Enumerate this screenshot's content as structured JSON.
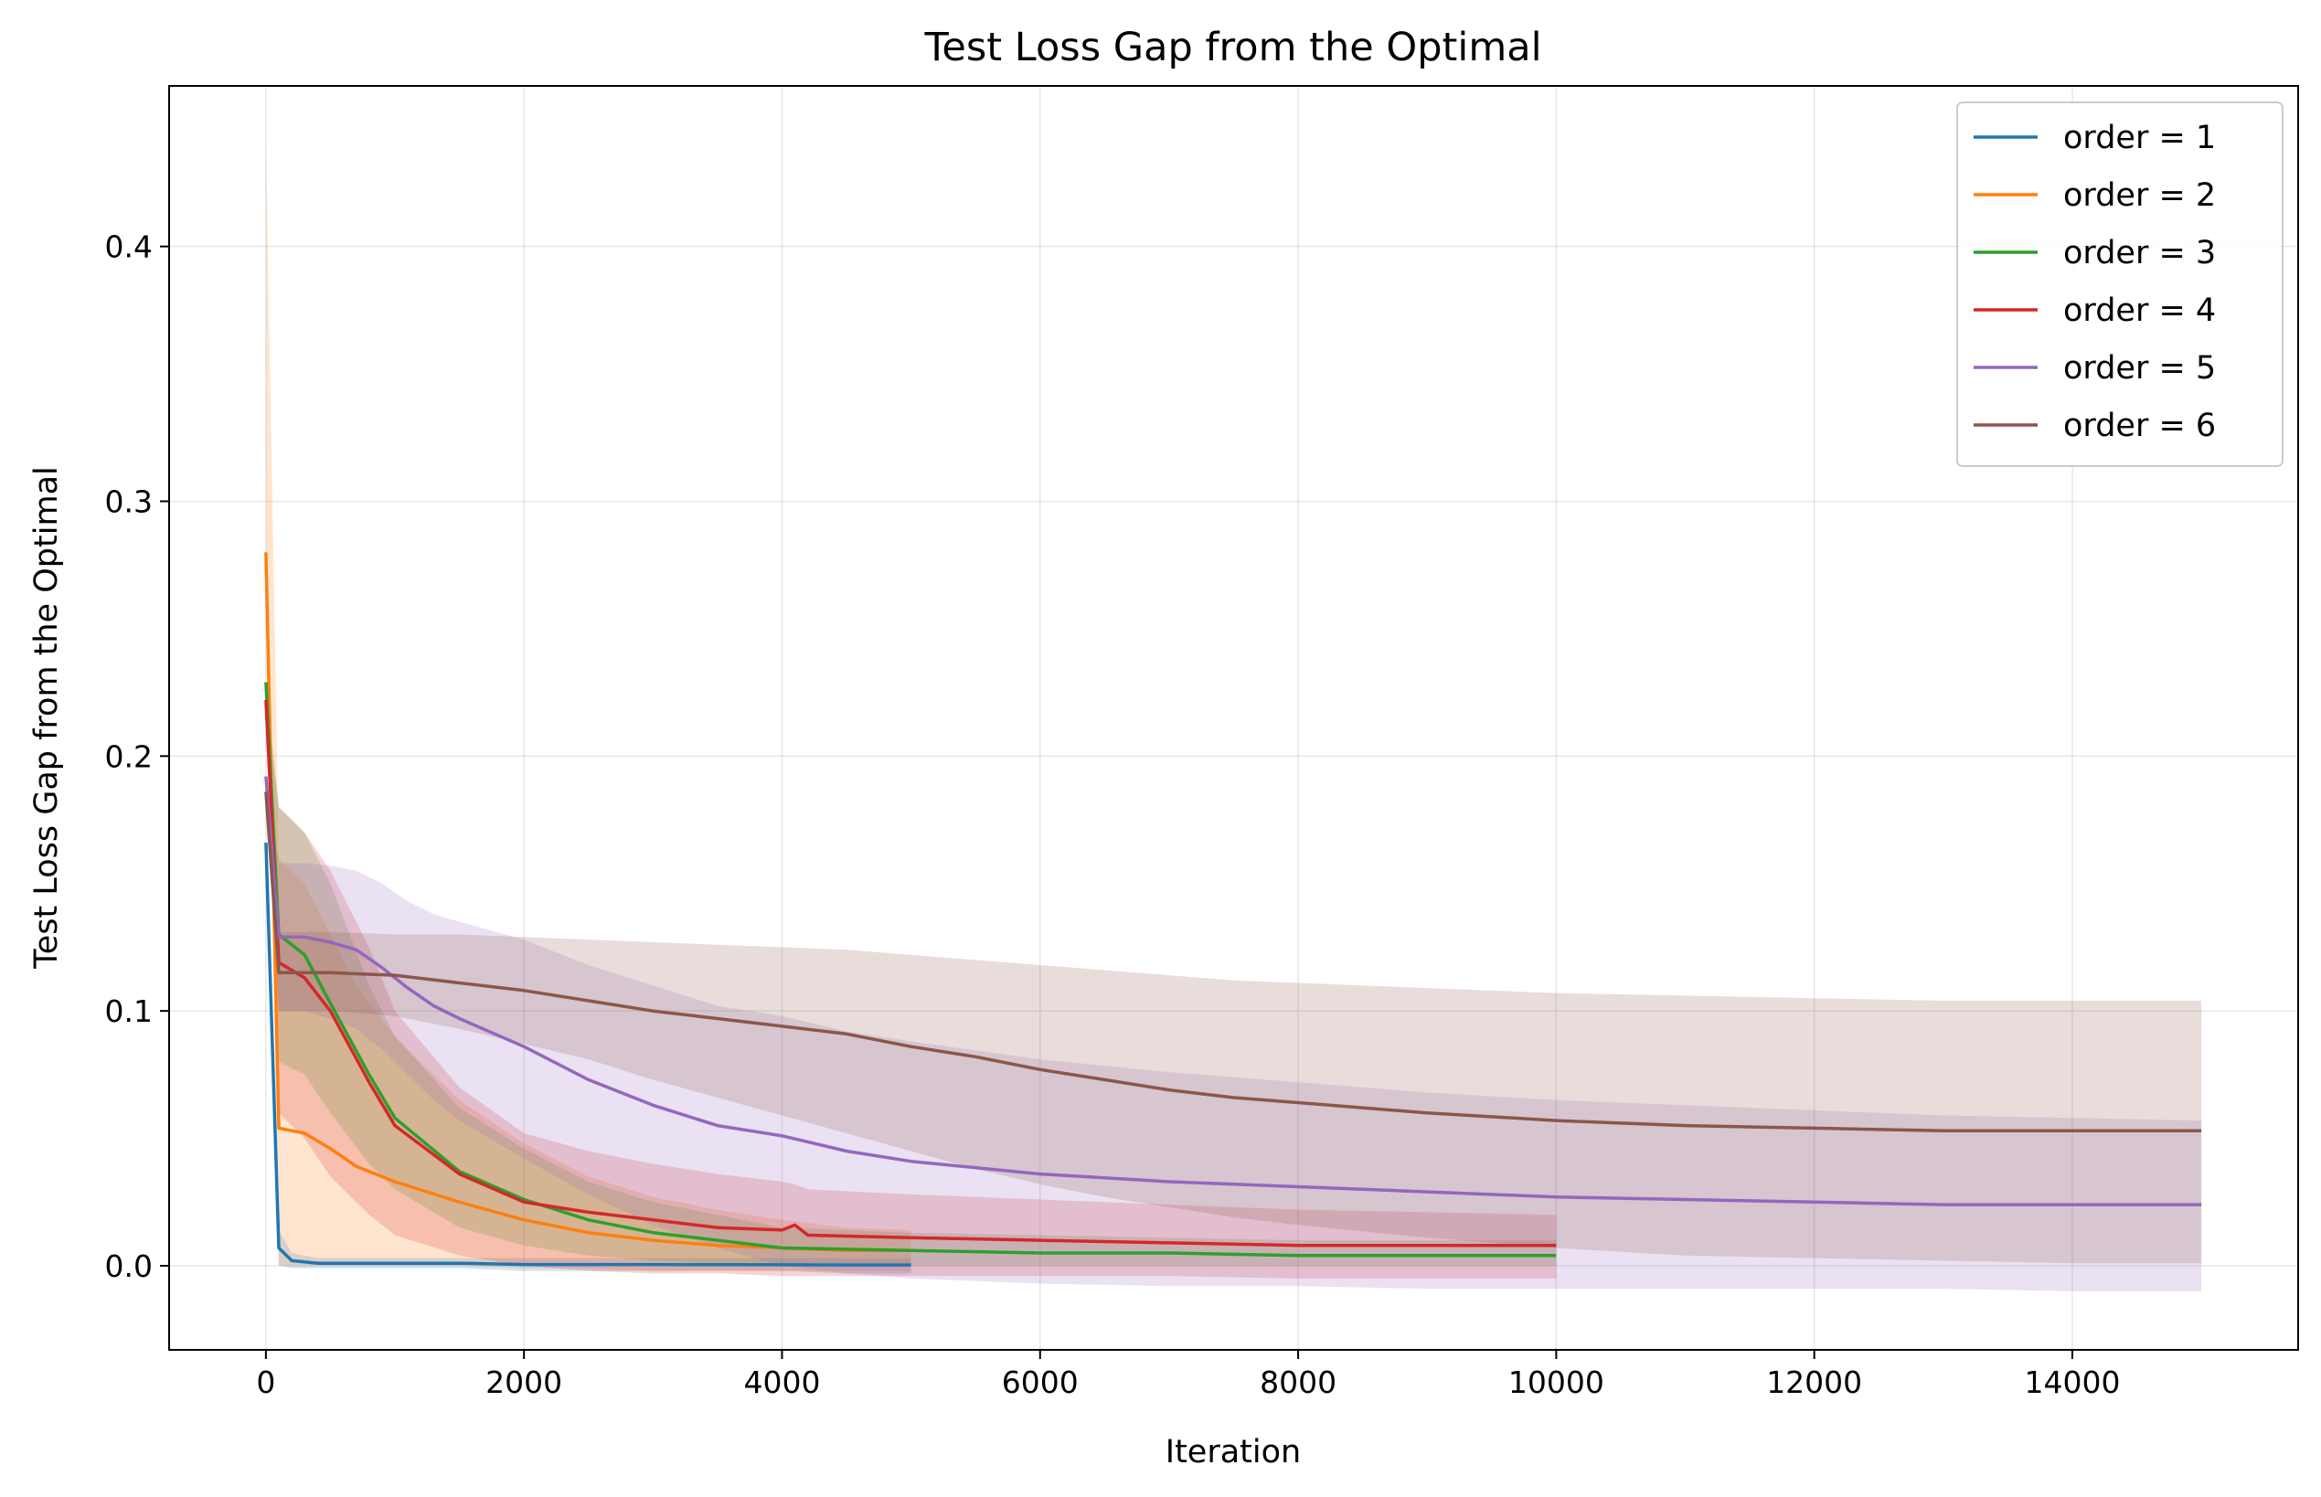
{
  "chart_data": {
    "type": "line",
    "title": "Test Loss Gap from the Optimal",
    "xlabel": "Iteration",
    "ylabel": "Test Loss Gap from the Optimal",
    "xlim": [
      -750,
      15750
    ],
    "ylim": [
      -0.033,
      0.463
    ],
    "xticks": [
      0,
      2000,
      4000,
      6000,
      8000,
      10000,
      12000,
      14000
    ],
    "yticks": [
      0.0,
      0.1,
      0.2,
      0.3,
      0.4
    ],
    "ytick_labels": [
      "0.0",
      "0.1",
      "0.2",
      "0.3",
      "0.4"
    ],
    "grid": true,
    "legend_position": "top-right",
    "series": [
      {
        "name": "order = 1",
        "color": "#1f77b4",
        "x": [
          0,
          100,
          200,
          400,
          700,
          1000,
          1500,
          2000,
          3000,
          4000,
          4500,
          5000
        ],
        "y": [
          0.166,
          0.007,
          0.002,
          0.001,
          0.001,
          0.001,
          0.001,
          0.0005,
          0.0005,
          0.0004,
          0.0003,
          0.0003
        ],
        "lower": [
          0.166,
          0.0,
          -0.001,
          -0.001,
          -0.001,
          -0.001,
          -0.001,
          -0.002,
          -0.002,
          -0.002,
          -0.003,
          -0.003
        ],
        "upper": [
          0.166,
          0.014,
          0.005,
          0.003,
          0.003,
          0.003,
          0.003,
          0.003,
          0.003,
          0.003,
          0.003,
          0.003
        ]
      },
      {
        "name": "order = 2",
        "color": "#ff7f0e",
        "x": [
          0,
          100,
          300,
          500,
          700,
          1000,
          1500,
          2000,
          2500,
          3000,
          3500,
          4000,
          4500,
          5000
        ],
        "y": [
          0.28,
          0.054,
          0.052,
          0.046,
          0.039,
          0.033,
          0.025,
          0.018,
          0.013,
          0.01,
          0.008,
          0.007,
          0.006,
          0.006
        ],
        "lower": [
          0.28,
          0.0,
          0.0,
          0.0,
          0.0,
          0.0,
          0.0,
          -0.001,
          -0.001,
          -0.002,
          -0.002,
          -0.002,
          -0.002,
          -0.002
        ],
        "upper": [
          0.44,
          0.16,
          0.15,
          0.13,
          0.11,
          0.09,
          0.065,
          0.048,
          0.035,
          0.027,
          0.022,
          0.018,
          0.015,
          0.014
        ]
      },
      {
        "name": "order = 3",
        "color": "#2ca02c",
        "x": [
          0,
          100,
          300,
          500,
          800,
          1000,
          1500,
          2000,
          2500,
          3000,
          3500,
          4000,
          5000,
          6000,
          7000,
          8000,
          9000,
          10000
        ],
        "y": [
          0.229,
          0.13,
          0.122,
          0.103,
          0.075,
          0.058,
          0.037,
          0.026,
          0.018,
          0.013,
          0.01,
          0.007,
          0.006,
          0.005,
          0.005,
          0.004,
          0.004,
          0.004
        ],
        "lower": [
          0.229,
          0.08,
          0.075,
          0.06,
          0.04,
          0.03,
          0.015,
          0.008,
          0.004,
          0.002,
          0.001,
          0.0,
          0.0,
          0.0,
          0.0,
          0.0,
          0.0,
          0.0
        ],
        "upper": [
          0.229,
          0.18,
          0.17,
          0.15,
          0.11,
          0.09,
          0.062,
          0.046,
          0.033,
          0.025,
          0.02,
          0.015,
          0.013,
          0.012,
          0.011,
          0.01,
          0.01,
          0.01
        ]
      },
      {
        "name": "order = 4",
        "color": "#d62728",
        "x": [
          0,
          100,
          300,
          500,
          800,
          1000,
          1500,
          2000,
          2500,
          3000,
          3500,
          4000,
          4100,
          4200,
          5000,
          6000,
          7000,
          8000,
          9000,
          10000
        ],
        "y": [
          0.222,
          0.119,
          0.113,
          0.1,
          0.072,
          0.055,
          0.036,
          0.025,
          0.021,
          0.018,
          0.015,
          0.014,
          0.016,
          0.012,
          0.011,
          0.01,
          0.009,
          0.008,
          0.008,
          0.008
        ],
        "lower": [
          0.222,
          0.06,
          0.05,
          0.035,
          0.02,
          0.012,
          0.004,
          0.0,
          -0.002,
          -0.003,
          -0.003,
          -0.004,
          -0.004,
          -0.004,
          -0.004,
          -0.004,
          -0.004,
          -0.005,
          -0.005,
          -0.005
        ],
        "upper": [
          0.222,
          0.18,
          0.17,
          0.155,
          0.125,
          0.1,
          0.07,
          0.052,
          0.045,
          0.04,
          0.036,
          0.033,
          0.032,
          0.03,
          0.028,
          0.026,
          0.024,
          0.022,
          0.021,
          0.02
        ]
      },
      {
        "name": "order = 5",
        "color": "#9467bd",
        "x": [
          0,
          100,
          300,
          500,
          700,
          900,
          1100,
          1300,
          1500,
          2000,
          2500,
          3000,
          3500,
          4000,
          4500,
          5000,
          6000,
          7000,
          8000,
          9000,
          10000,
          11000,
          12000,
          13000,
          14000,
          15000
        ],
        "y": [
          0.192,
          0.129,
          0.129,
          0.127,
          0.124,
          0.117,
          0.109,
          0.102,
          0.097,
          0.086,
          0.073,
          0.063,
          0.055,
          0.051,
          0.045,
          0.041,
          0.036,
          0.033,
          0.031,
          0.029,
          0.027,
          0.026,
          0.025,
          0.024,
          0.024,
          0.024
        ],
        "lower": [
          0.192,
          0.1,
          0.1,
          0.097,
          0.093,
          0.085,
          0.075,
          0.065,
          0.057,
          0.042,
          0.028,
          0.016,
          0.007,
          0.0,
          -0.003,
          -0.005,
          -0.007,
          -0.008,
          -0.008,
          -0.009,
          -0.009,
          -0.009,
          -0.009,
          -0.009,
          -0.01,
          -0.01
        ],
        "upper": [
          0.192,
          0.158,
          0.158,
          0.157,
          0.155,
          0.15,
          0.143,
          0.138,
          0.135,
          0.128,
          0.118,
          0.11,
          0.102,
          0.098,
          0.092,
          0.088,
          0.081,
          0.076,
          0.072,
          0.068,
          0.065,
          0.063,
          0.061,
          0.059,
          0.058,
          0.057
        ]
      },
      {
        "name": "order = 6",
        "color": "#8c564b",
        "x": [
          0,
          100,
          500,
          1000,
          1500,
          2000,
          2500,
          3000,
          3500,
          4000,
          4500,
          5000,
          5500,
          6000,
          6500,
          7000,
          7500,
          8000,
          9000,
          10000,
          11000,
          12000,
          13000,
          14000,
          15000
        ],
        "y": [
          0.186,
          0.115,
          0.115,
          0.114,
          0.111,
          0.108,
          0.104,
          0.1,
          0.097,
          0.094,
          0.091,
          0.086,
          0.082,
          0.077,
          0.073,
          0.069,
          0.066,
          0.064,
          0.06,
          0.057,
          0.055,
          0.054,
          0.053,
          0.053,
          0.053
        ],
        "lower": [
          0.186,
          0.1,
          0.1,
          0.098,
          0.093,
          0.087,
          0.081,
          0.073,
          0.066,
          0.059,
          0.052,
          0.045,
          0.038,
          0.032,
          0.027,
          0.023,
          0.019,
          0.016,
          0.011,
          0.007,
          0.004,
          0.003,
          0.002,
          0.001,
          0.001
        ],
        "upper": [
          0.186,
          0.131,
          0.131,
          0.13,
          0.13,
          0.129,
          0.128,
          0.127,
          0.126,
          0.125,
          0.124,
          0.122,
          0.12,
          0.118,
          0.116,
          0.114,
          0.112,
          0.111,
          0.109,
          0.107,
          0.106,
          0.105,
          0.104,
          0.104,
          0.104
        ]
      }
    ]
  }
}
